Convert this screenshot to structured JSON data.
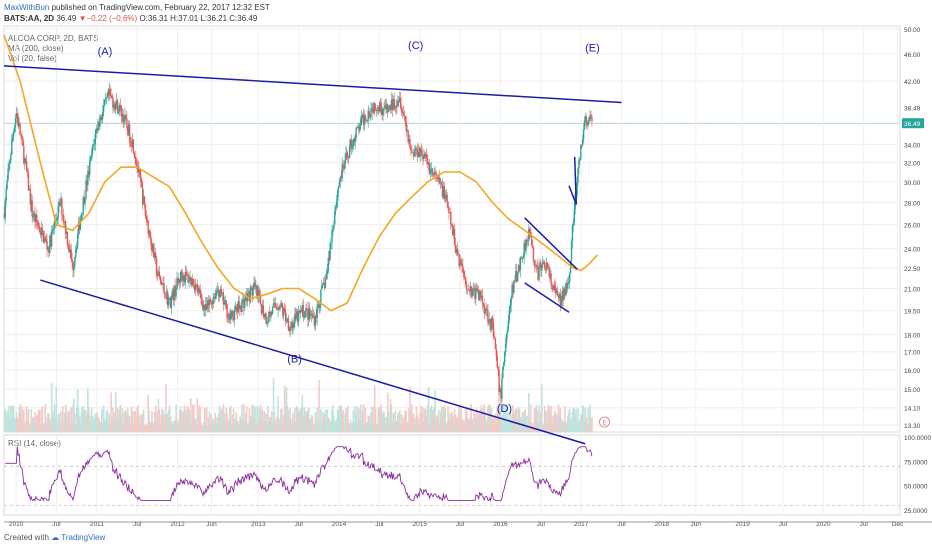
{
  "header": {
    "author": "MaxWithBun",
    "published": "published on TradingView.com, February 22, 2017 12:32 EST",
    "symbol": "BATS:AA, 2D",
    "price": "36.49",
    "change": "▼−0.22 (−0.6%)",
    "ohlc": "O:36.31 H:37.01 L:36.21 C:36.49"
  },
  "legend": {
    "title": "ALCOA CORP, 2D, BATS",
    "ma": "MA (200, close)",
    "vol": "Vol (20, false)",
    "rsi": "RSI (14, close)"
  },
  "footer": {
    "created": "Created with",
    "brand": "TradingView"
  },
  "colors": {
    "candle_up": "#26a69a",
    "candle_down": "#ef5350",
    "ma": "#f5a623",
    "trend": "#1c1ca8",
    "rsi": "#8a2f9e",
    "vol_up": "#bfe3dd",
    "vol_down": "#f6c9c7"
  },
  "chart_data": {
    "type": "line",
    "title": "ALCOA CORP, 2D, BATS",
    "x_ticks": [
      "2010",
      "Jul",
      "2011",
      "Jul",
      "2012",
      "Jun",
      "2013",
      "Jul",
      "2014",
      "Jul",
      "2015",
      "Jul",
      "2016",
      "Jul",
      "2017",
      "Jul",
      "2018",
      "Jun",
      "2019",
      "Jul",
      "2020",
      "Jul",
      "Dec"
    ],
    "price_axis_labels": [
      "50.00",
      "46.00",
      "42.00",
      "38.49",
      "36.49",
      "34.00",
      "32.00",
      "30.00",
      "28.00",
      "26.00",
      "24.00",
      "22.50",
      "21.00",
      "19.50",
      "18.00",
      "17.00",
      "16.00",
      "15.00",
      "14.10",
      "13.30"
    ],
    "price_axis_values": [
      50,
      46,
      42,
      38.49,
      36.49,
      34,
      32,
      30,
      28,
      26,
      24,
      22.5,
      21,
      19.5,
      18,
      17,
      16,
      15,
      14.1,
      13.3
    ],
    "ylim": [
      13.0,
      50.5
    ],
    "last_price": 36.49,
    "price_series": {
      "name": "",
      "x": [
        2009.85,
        2010.0,
        2010.2,
        2010.4,
        2010.55,
        2010.7,
        2010.9,
        2011.0,
        2011.15,
        2011.3,
        2011.45,
        2011.6,
        2011.75,
        2011.9,
        2012.05,
        2012.2,
        2012.35,
        2012.5,
        2012.65,
        2012.8,
        2012.95,
        2013.1,
        2013.25,
        2013.4,
        2013.55,
        2013.7,
        2013.85,
        2014.0,
        2014.15,
        2014.3,
        2014.45,
        2014.6,
        2014.75,
        2014.9,
        2015.0,
        2015.15,
        2015.3,
        2015.45,
        2015.6,
        2015.75,
        2015.9,
        2016.0,
        2016.05,
        2016.15,
        2016.25,
        2016.35,
        2016.45,
        2016.55,
        2016.65,
        2016.75,
        2016.85,
        2016.95,
        2017.05,
        2017.14
      ],
      "y": [
        27,
        38,
        27,
        24,
        28,
        22.5,
        31,
        36,
        40,
        38,
        34,
        27,
        22,
        20,
        22,
        21.5,
        19.5,
        21,
        19,
        20,
        21,
        19,
        20,
        18.5,
        19.5,
        19,
        22,
        30,
        34,
        37,
        39,
        38,
        40,
        33,
        33.5,
        31,
        29,
        24,
        21,
        20.5,
        18.5,
        14.5,
        17,
        21,
        23,
        25.5,
        22,
        23,
        21,
        20,
        22,
        30,
        37,
        36.49
      ]
    },
    "ma_series": {
      "name": "",
      "x": [
        2009.85,
        2010.05,
        2010.3,
        2010.5,
        2010.7,
        2010.9,
        2011.1,
        2011.3,
        2011.5,
        2011.7,
        2011.9,
        2012.1,
        2012.3,
        2012.5,
        2012.7,
        2012.9,
        2013.1,
        2013.3,
        2013.5,
        2013.7,
        2013.9,
        2014.1,
        2014.3,
        2014.5,
        2014.7,
        2014.9,
        2015.1,
        2015.3,
        2015.5,
        2015.7,
        2015.9,
        2016.1,
        2016.3,
        2016.5,
        2016.7,
        2016.9,
        2017.0,
        2017.1,
        2017.2
      ],
      "y": [
        49,
        42,
        32,
        26,
        25.5,
        27,
        30,
        31.5,
        31.5,
        30.5,
        29.5,
        27,
        24.5,
        22.5,
        21,
        20.3,
        20.6,
        21,
        21,
        20.3,
        19.5,
        20,
        22.5,
        25,
        27,
        28.5,
        30,
        31,
        31,
        30,
        28,
        26.5,
        25.5,
        24.5,
        23.5,
        22.5,
        22.3,
        22.8,
        23.5
      ]
    },
    "trendlines": [
      {
        "x": [
          2009.85,
          2017.5
        ],
        "y": [
          44.2,
          39.1
        ]
      },
      {
        "x": [
          2010.3,
          2017.05
        ],
        "y": [
          21.6,
          12.5
        ]
      },
      {
        "x": [
          2016.3,
          2016.95
        ],
        "y": [
          26.6,
          22.4
        ]
      },
      {
        "x": [
          2016.3,
          2016.85
        ],
        "y": [
          21.4,
          19.4
        ]
      },
      {
        "x": [
          2016.85,
          2016.94
        ],
        "y": [
          29.6,
          27.8
        ]
      },
      {
        "x": [
          2016.92,
          2016.94
        ],
        "y": [
          32.6,
          27.8
        ]
      }
    ],
    "wave_labels": [
      {
        "text": "(A)",
        "x": 2011.1,
        "y": 45.8
      },
      {
        "text": "(B)",
        "x": 2013.45,
        "y": 16.4
      },
      {
        "text": "(C)",
        "x": 2014.95,
        "y": 46.8
      },
      {
        "text": "(D)",
        "x": 2016.05,
        "y": 13.9
      },
      {
        "text": "(E)",
        "x": 2017.14,
        "y": 46.4
      }
    ],
    "rsi": {
      "name": "",
      "axis_labels": [
        "100.0000",
        "75.0000",
        "50.0000",
        "25.0000"
      ],
      "axis_values": [
        100,
        75,
        50,
        25
      ],
      "ylim": [
        20,
        102
      ]
    }
  }
}
